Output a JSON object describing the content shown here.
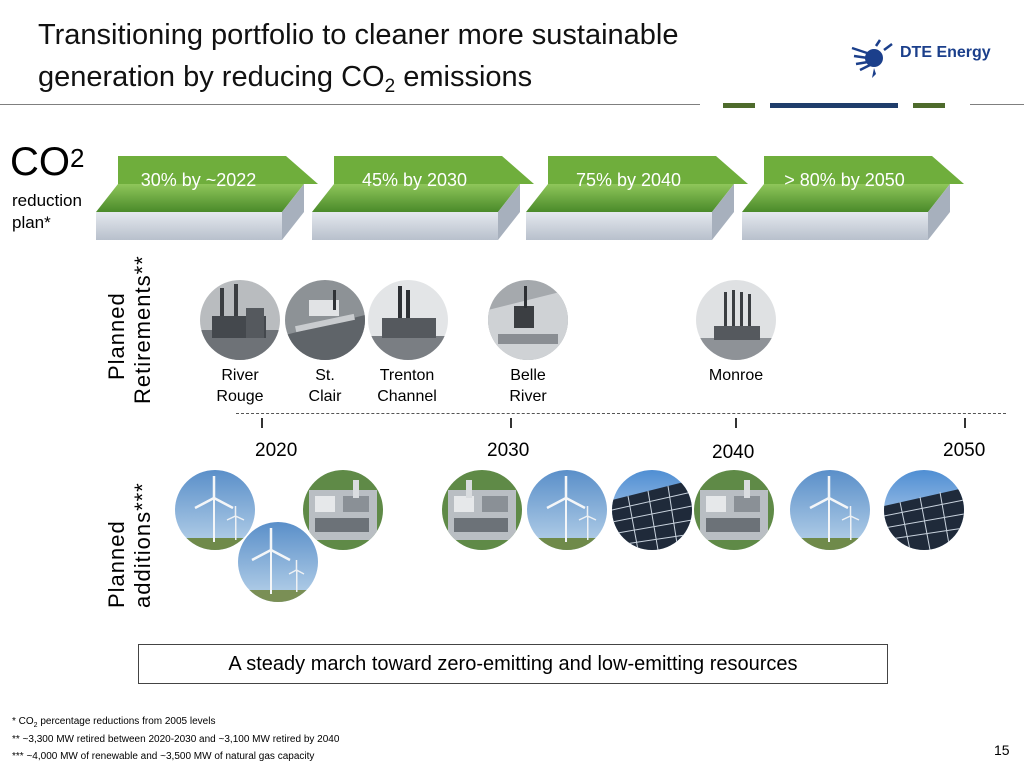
{
  "header": {
    "title_line1": "Transitioning portfolio to cleaner more sustainable",
    "title_line2_pre": "generation by reducing CO",
    "title_line2_sub": "2",
    "title_line2_post": " emissions",
    "logo_text": "DTE Energy",
    "accent_colors": [
      "#4e6b2c",
      "#1f3d6b"
    ]
  },
  "plan": {
    "co2_main": "CO",
    "co2_sub": "2",
    "subtitle": "reduction plan*",
    "steps": [
      {
        "label": "30% by ~2022"
      },
      {
        "label": "45% by 2030"
      },
      {
        "label": "75% by 2040"
      },
      {
        "label": "> 80% by 2050"
      }
    ]
  },
  "retirements": {
    "side_label_1": "Planned",
    "side_label_2": "Retirements**",
    "plants": [
      {
        "name_line1": "River",
        "name_line2": "Rouge",
        "icon": "coal-plant-icon"
      },
      {
        "name_line1": "St.",
        "name_line2": "Clair",
        "icon": "coal-plant-icon"
      },
      {
        "name_line1": "Trenton",
        "name_line2": "Channel",
        "icon": "coal-plant-icon"
      },
      {
        "name_line1": "Belle",
        "name_line2": "River",
        "icon": "coal-plant-icon"
      },
      {
        "name_line1": "Monroe",
        "name_line2": "",
        "icon": "coal-plant-icon"
      }
    ]
  },
  "timeline": {
    "years": [
      "2020",
      "2030",
      "2040",
      "2050"
    ]
  },
  "additions": {
    "side_label_1": "Planned",
    "side_label_2": "additions***",
    "items": [
      {
        "type": "wind",
        "icon": "wind-turbine-icon"
      },
      {
        "type": "wind",
        "icon": "wind-turbine-icon"
      },
      {
        "type": "gas",
        "icon": "gas-plant-icon"
      },
      {
        "type": "gas",
        "icon": "gas-plant-icon"
      },
      {
        "type": "wind",
        "icon": "wind-turbine-icon"
      },
      {
        "type": "solar",
        "icon": "solar-panel-icon"
      },
      {
        "type": "gas",
        "icon": "gas-plant-icon"
      },
      {
        "type": "wind",
        "icon": "wind-turbine-icon"
      },
      {
        "type": "solar",
        "icon": "solar-panel-icon"
      }
    ]
  },
  "summary": "A steady march toward zero-emitting and low-emitting resources",
  "footnotes": {
    "f1_pre": "*  CO",
    "f1_sub": "2",
    "f1_post": " percentage  reductions  from  2005  levels",
    "f2": "**  ~3,300  MW  retired  between  2020-2030  and  ~3,100  MW  retired  by  2040",
    "f3": "*** ~4,000  MW  of  renewable  and  ~3,500  MW  of  natural  gas  capacity"
  },
  "page_number": "15"
}
